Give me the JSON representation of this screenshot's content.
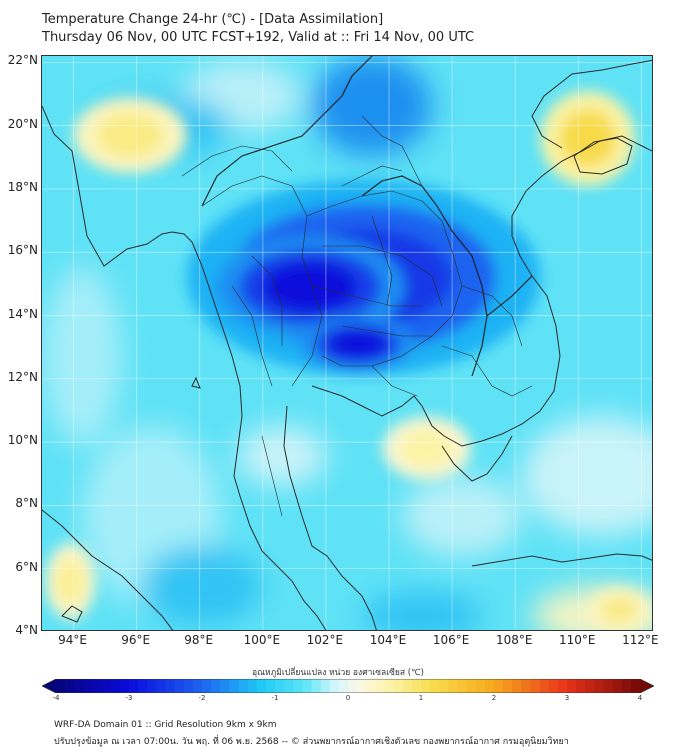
{
  "header": {
    "title": "Temperature Change 24-hr (℃) - [Data Assimilation]",
    "subtitle": "Thursday 06 Nov, 00 UTC FCST+192, Valid at :: Fri 14 Nov, 00 UTC"
  },
  "map": {
    "lat_labels": [
      "22°N",
      "20°N",
      "18°N",
      "16°N",
      "14°N",
      "12°N",
      "10°N",
      "8°N",
      "6°N",
      "4°N"
    ],
    "lon_labels": [
      "94°E",
      "96°E",
      "98°E",
      "100°E",
      "102°E",
      "104°E",
      "106°E",
      "108°E",
      "110°E",
      "112°E"
    ],
    "lat_values": [
      22,
      20,
      18,
      16,
      14,
      12,
      10,
      8,
      6,
      4
    ],
    "lon_values": [
      94,
      96,
      98,
      100,
      102,
      104,
      106,
      108,
      110,
      112
    ],
    "extent": {
      "lon_min": 93,
      "lon_max": 112.4,
      "lat_min": 4,
      "lat_max": 22.2
    },
    "field_blobs": [
      {
        "lon": 103.2,
        "lat": 15.2,
        "rx_deg": 5.6,
        "ry_deg": 3.1,
        "value": -2.5,
        "tag": "cold core"
      },
      {
        "lon": 101.5,
        "lat": 14.9,
        "rx_deg": 3.0,
        "ry_deg": 1.6,
        "value": -3.0,
        "tag": "cold core"
      },
      {
        "lon": 103.0,
        "lat": 13.1,
        "rx_deg": 1.8,
        "ry_deg": 0.9,
        "value": -3.0,
        "tag": "cold core"
      },
      {
        "lon": 95.8,
        "lat": 19.7,
        "rx_deg": 1.8,
        "ry_deg": 1.2,
        "value": 0.8,
        "tag": "warm"
      },
      {
        "lon": 110.3,
        "lat": 19.6,
        "rx_deg": 1.5,
        "ry_deg": 1.5,
        "value": 1.2,
        "tag": "warm"
      },
      {
        "lon": 105.2,
        "lat": 9.8,
        "rx_deg": 1.4,
        "ry_deg": 1.0,
        "value": 0.6,
        "tag": "warm"
      },
      {
        "lon": 93.9,
        "lat": 5.6,
        "rx_deg": 0.8,
        "ry_deg": 1.2,
        "value": 0.7,
        "tag": "warm"
      },
      {
        "lon": 111.3,
        "lat": 4.7,
        "rx_deg": 1.0,
        "ry_deg": 0.7,
        "value": 0.8,
        "tag": "warm"
      }
    ]
  },
  "colorbar": {
    "title": "อุณหภูมิเปลี่ยนแปลง หน่วย องศาเซลเซียส (℃)",
    "ticks": [
      "-4",
      "-3",
      "-2",
      "-1",
      "0",
      "1",
      "2",
      "3",
      "4"
    ],
    "tick_values": [
      -4,
      -3,
      -2,
      -1,
      0,
      1,
      2,
      3,
      4
    ],
    "range": [
      -4,
      4
    ],
    "stops": [
      {
        "value": -4,
        "color": "#05047a"
      },
      {
        "value": -3,
        "color": "#0a0adc"
      },
      {
        "value": -2,
        "color": "#1e64f0"
      },
      {
        "value": -1.2,
        "color": "#1ec8f5"
      },
      {
        "value": -0.6,
        "color": "#5ae6f7"
      },
      {
        "value": -0.15,
        "color": "#d8f6fb"
      },
      {
        "value": 0.15,
        "color": "#fbf8e6"
      },
      {
        "value": 0.6,
        "color": "#fbf3a4"
      },
      {
        "value": 1.2,
        "color": "#f8da48"
      },
      {
        "value": 2,
        "color": "#f7a81c"
      },
      {
        "value": 3,
        "color": "#e8301a"
      },
      {
        "value": 4,
        "color": "#730808"
      }
    ]
  },
  "footer": {
    "line1": "WRF-DA Domain 01 :: Grid Resolution 9km x 9km",
    "line2": "ปรับปรุงข้อมูล ณ เวลา 07:00น. วัน พฤ. ที่ 06 พ.ย. 2568 -- © ส่วนพยากรณ์อากาศเชิงตัวเลข กองพยากรณ์อากาศ กรมอุตุนิยมวิทยา"
  }
}
